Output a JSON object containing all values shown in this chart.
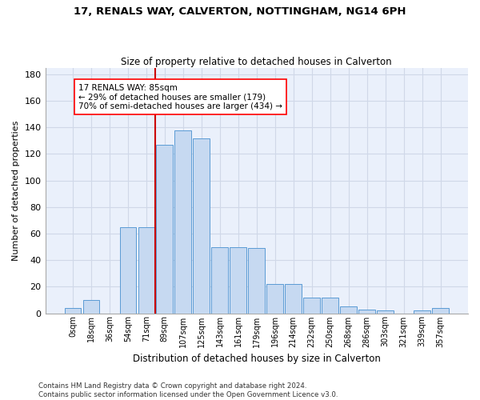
{
  "title": "17, RENALS WAY, CALVERTON, NOTTINGHAM, NG14 6PH",
  "subtitle": "Size of property relative to detached houses in Calverton",
  "xlabel": "Distribution of detached houses by size in Calverton",
  "ylabel": "Number of detached properties",
  "bar_labels": [
    "0sqm",
    "18sqm",
    "36sqm",
    "54sqm",
    "71sqm",
    "89sqm",
    "107sqm",
    "125sqm",
    "143sqm",
    "161sqm",
    "179sqm",
    "196sqm",
    "214sqm",
    "232sqm",
    "250sqm",
    "268sqm",
    "286sqm",
    "303sqm",
    "321sqm",
    "339sqm",
    "357sqm"
  ],
  "bar_values": [
    4,
    10,
    0,
    65,
    65,
    127,
    138,
    132,
    50,
    50,
    49,
    22,
    22,
    12,
    12,
    5,
    3,
    2,
    0,
    2,
    4
  ],
  "bar_color": "#c6d9f1",
  "bar_edgecolor": "#5b9bd5",
  "grid_color": "#d0d8e8",
  "bg_color": "#eaf0fb",
  "vline_color": "#cc0000",
  "annotation_text": "17 RENALS WAY: 85sqm\n← 29% of detached houses are smaller (179)\n70% of semi-detached houses are larger (434) →",
  "ylim": [
    0,
    185
  ],
  "yticks": [
    0,
    20,
    40,
    60,
    80,
    100,
    120,
    140,
    160,
    180
  ],
  "footer": "Contains HM Land Registry data © Crown copyright and database right 2024.\nContains public sector information licensed under the Open Government Licence v3.0."
}
